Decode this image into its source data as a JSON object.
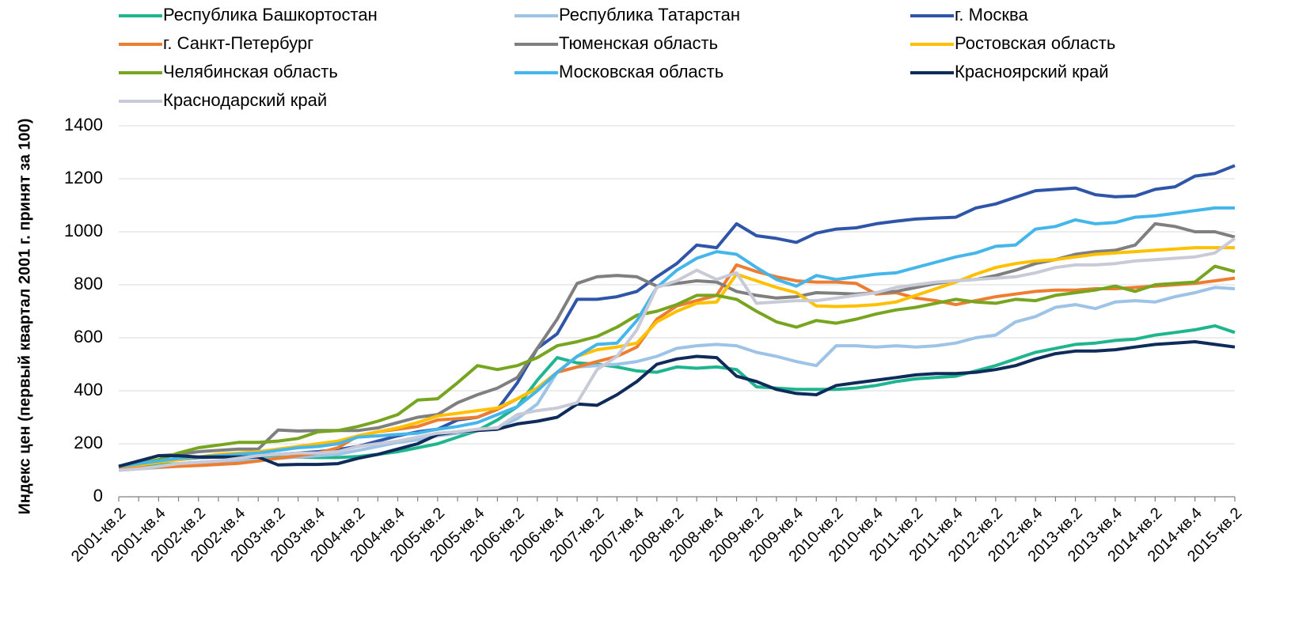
{
  "chart_data": {
    "type": "line",
    "ylabel": "Индекс цен (первый квартал 2001 г. принят за 100)",
    "categories": [
      "2001-кв.2",
      null,
      "2001-кв.4",
      null,
      "2002-кв.2",
      null,
      "2002-кв.4",
      null,
      "2003-кв.2",
      null,
      "2003-кв.4",
      null,
      "2004-кв.2",
      null,
      "2004-кв.4",
      null,
      "2005-кв.2",
      null,
      "2005-кв.4",
      null,
      "2006-кв.2",
      null,
      "2006-кв.4",
      null,
      "2007-кв.2",
      null,
      "2007-кв.4",
      null,
      "2008-кв.2",
      null,
      "2008-кв.4",
      null,
      "2009-кв.2",
      null,
      "2009-кв.4",
      null,
      "2010-кв.2",
      null,
      "2010-кв.4",
      null,
      "2011-кв.2",
      null,
      "2011-кв.4",
      null,
      "2012-кв.2",
      null,
      "2012-кв.4",
      null,
      "2013-кв.2",
      null,
      "2013-кв.4",
      null,
      "2014-кв.2",
      null,
      "2014-кв.4",
      null,
      "2015-кв.2"
    ],
    "ylim": [
      0,
      1400
    ],
    "yticks": [
      0,
      200,
      400,
      600,
      800,
      1000,
      1200,
      1400
    ],
    "grid": true,
    "legend": "top",
    "series": [
      {
        "name": "Республика Башкортостан",
        "color": "#1fb58f",
        "values": [
          110,
          115,
          120,
          125,
          130,
          135,
          140,
          145,
          148,
          150,
          148,
          148,
          152,
          160,
          170,
          185,
          200,
          225,
          250,
          290,
          340,
          440,
          525,
          505,
          500,
          490,
          475,
          470,
          490,
          485,
          490,
          480,
          415,
          410,
          405,
          405,
          405,
          410,
          420,
          435,
          445,
          450,
          455,
          475,
          495,
          520,
          545,
          560,
          575,
          580,
          590,
          595,
          610,
          620,
          630,
          645,
          620
        ]
      },
      {
        "name": "Республика Татарстан",
        "color": "#9dc3e6",
        "values": [
          100,
          105,
          110,
          115,
          120,
          125,
          135,
          140,
          145,
          150,
          155,
          160,
          175,
          190,
          205,
          215,
          230,
          240,
          250,
          260,
          295,
          350,
          470,
          490,
          495,
          500,
          510,
          530,
          560,
          570,
          575,
          570,
          545,
          530,
          510,
          495,
          570,
          570,
          565,
          570,
          565,
          570,
          580,
          600,
          610,
          660,
          680,
          715,
          725,
          710,
          735,
          740,
          735,
          755,
          770,
          790,
          785
        ]
      },
      {
        "name": "г. Москва",
        "color": "#2f55a8",
        "values": [
          115,
          125,
          135,
          140,
          148,
          150,
          152,
          155,
          160,
          165,
          170,
          178,
          190,
          210,
          230,
          245,
          255,
          290,
          300,
          330,
          430,
          560,
          615,
          745,
          745,
          755,
          775,
          830,
          880,
          950,
          940,
          1030,
          985,
          975,
          960,
          995,
          1010,
          1015,
          1030,
          1040,
          1048,
          1052,
          1055,
          1090,
          1105,
          1130,
          1155,
          1160,
          1165,
          1140,
          1132,
          1135,
          1160,
          1170,
          1210,
          1220,
          1250
        ]
      },
      {
        "name": "г. Санкт-Петербург",
        "color": "#ed7d31",
        "values": [
          110,
          110,
          112,
          115,
          118,
          122,
          126,
          135,
          145,
          155,
          165,
          185,
          230,
          245,
          255,
          265,
          290,
          295,
          300,
          330,
          370,
          410,
          470,
          490,
          510,
          530,
          565,
          670,
          720,
          740,
          760,
          875,
          850,
          830,
          815,
          810,
          810,
          805,
          765,
          770,
          750,
          740,
          725,
          740,
          755,
          765,
          775,
          780,
          780,
          785,
          785,
          790,
          795,
          800,
          805,
          815,
          825
        ]
      },
      {
        "name": "Тюменская область",
        "color": "#7f7f7f",
        "values": [
          115,
          135,
          155,
          160,
          170,
          175,
          180,
          180,
          252,
          248,
          250,
          250,
          250,
          260,
          280,
          300,
          310,
          355,
          385,
          410,
          450,
          560,
          670,
          805,
          830,
          835,
          830,
          795,
          805,
          815,
          810,
          775,
          760,
          750,
          755,
          770,
          768,
          765,
          770,
          775,
          790,
          805,
          815,
          820,
          835,
          855,
          880,
          895,
          915,
          925,
          930,
          950,
          1030,
          1020,
          1000,
          1000,
          980
        ]
      },
      {
        "name": "Ростовская область",
        "color": "#ffc000",
        "values": [
          115,
          120,
          130,
          140,
          150,
          160,
          165,
          170,
          180,
          190,
          200,
          210,
          230,
          245,
          260,
          280,
          305,
          315,
          325,
          335,
          370,
          410,
          470,
          530,
          555,
          565,
          580,
          660,
          700,
          730,
          735,
          840,
          815,
          790,
          770,
          720,
          718,
          720,
          725,
          735,
          760,
          785,
          810,
          840,
          865,
          880,
          890,
          895,
          905,
          915,
          920,
          925,
          930,
          935,
          940,
          940,
          940
        ]
      },
      {
        "name": "Челябинская область",
        "color": "#77a51f",
        "values": [
          115,
          125,
          140,
          165,
          185,
          195,
          205,
          205,
          210,
          220,
          245,
          250,
          265,
          285,
          310,
          365,
          370,
          430,
          495,
          480,
          495,
          525,
          570,
          585,
          605,
          640,
          685,
          700,
          725,
          760,
          760,
          745,
          700,
          660,
          640,
          665,
          655,
          670,
          690,
          705,
          715,
          730,
          745,
          735,
          730,
          745,
          740,
          760,
          770,
          780,
          795,
          775,
          800,
          805,
          810,
          870,
          850
        ]
      },
      {
        "name": "Московская область",
        "color": "#45b6ea",
        "values": [
          115,
          125,
          135,
          145,
          150,
          155,
          160,
          165,
          175,
          185,
          190,
          200,
          225,
          230,
          235,
          240,
          255,
          265,
          280,
          310,
          340,
          400,
          470,
          530,
          575,
          580,
          665,
          790,
          855,
          900,
          925,
          915,
          865,
          820,
          795,
          835,
          820,
          830,
          840,
          845,
          865,
          885,
          905,
          920,
          945,
          950,
          1010,
          1020,
          1045,
          1030,
          1035,
          1055,
          1060,
          1070,
          1080,
          1090,
          1090
        ]
      },
      {
        "name": "Красноярский край",
        "color": "#0e2b59",
        "values": [
          115,
          135,
          155,
          155,
          150,
          150,
          150,
          150,
          120,
          122,
          122,
          125,
          145,
          160,
          180,
          200,
          235,
          245,
          250,
          255,
          275,
          285,
          300,
          350,
          345,
          385,
          435,
          500,
          520,
          530,
          525,
          455,
          435,
          405,
          390,
          385,
          420,
          430,
          440,
          450,
          460,
          465,
          465,
          470,
          480,
          495,
          520,
          540,
          550,
          550,
          555,
          565,
          575,
          580,
          585,
          575,
          565
        ]
      },
      {
        "name": "Краснодарский край",
        "color": "#c9cad8",
        "values": [
          100,
          105,
          115,
          125,
          130,
          135,
          145,
          155,
          160,
          165,
          165,
          170,
          190,
          200,
          210,
          225,
          240,
          245,
          255,
          260,
          310,
          325,
          335,
          355,
          480,
          530,
          630,
          790,
          815,
          855,
          820,
          845,
          730,
          735,
          740,
          740,
          750,
          760,
          770,
          790,
          800,
          810,
          815,
          820,
          825,
          830,
          845,
          865,
          875,
          875,
          880,
          890,
          895,
          900,
          905,
          920,
          975
        ]
      }
    ]
  }
}
